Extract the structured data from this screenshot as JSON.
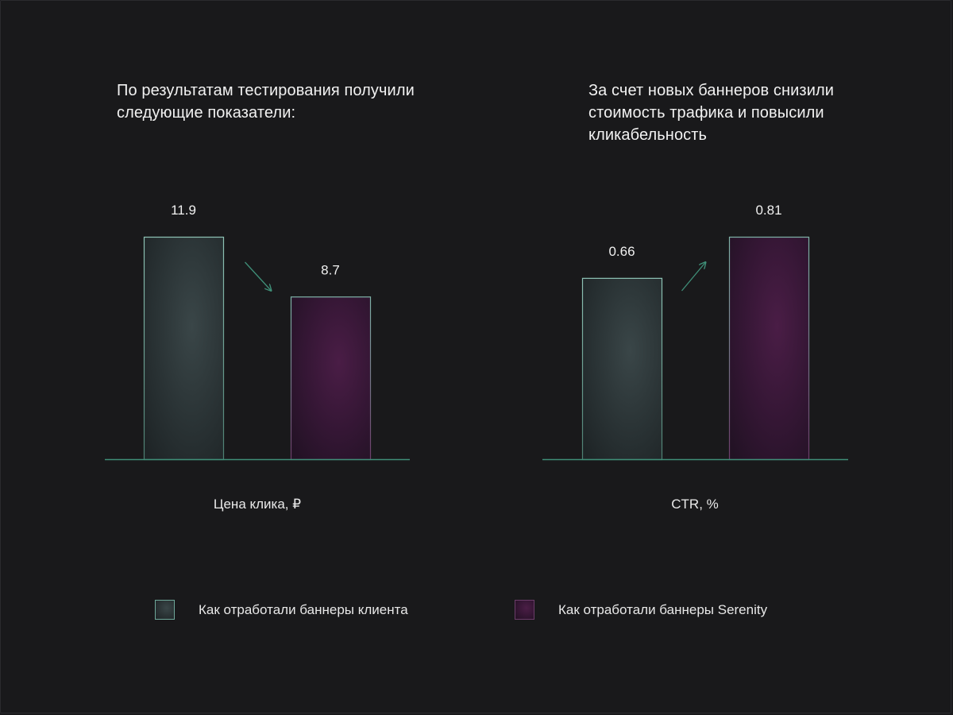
{
  "headings": {
    "left": "По результатам тестирования получили следующие показатели:",
    "right": "За счет новых баннеров снизили стоимость трафика и повысили кликабельность"
  },
  "legend": {
    "client": "Как отработали баннеры клиента",
    "serenity": "Как отработали баннеры Serenity"
  },
  "colors": {
    "baseline": "#3f8f78",
    "client_border": "#6fa89a",
    "serenity_border": "#6c3d6a",
    "arrow": "#3f8f78"
  },
  "chart_data": [
    {
      "type": "bar",
      "xlabel": "Цена клика, ₽",
      "categories": [
        "Как отработали баннеры клиента",
        "Как отработали баннеры Serenity"
      ],
      "values": [
        11.9,
        8.7
      ],
      "value_labels": [
        "11.9",
        "8.7"
      ],
      "trend_arrow": "down",
      "ylim": [
        0,
        11.9
      ],
      "grid": false,
      "legend": "bottom"
    },
    {
      "type": "bar",
      "xlabel": "CTR, %",
      "categories": [
        "Как отработали баннеры клиента",
        "Как отработали баннеры Serenity"
      ],
      "values": [
        0.66,
        0.81
      ],
      "value_labels": [
        "0.66",
        "0.81"
      ],
      "trend_arrow": "up",
      "ylim": [
        0,
        0.81
      ],
      "grid": false,
      "legend": "bottom"
    }
  ]
}
